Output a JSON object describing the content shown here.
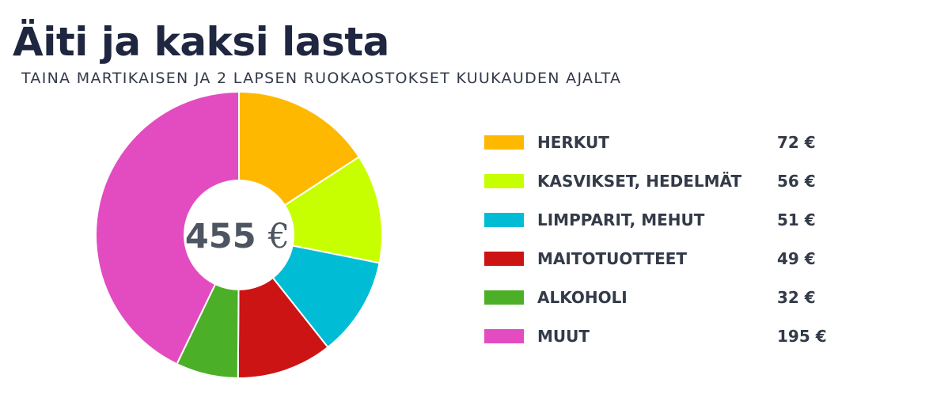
{
  "header": {
    "title": "Äiti ja kaksi lasta",
    "subtitle": "TAINA MARTIKAISEN JA 2 LAPSEN RUOKAOSTOKSET KUUKAUDEN AJALTA"
  },
  "chart_data": {
    "type": "pie",
    "donut": true,
    "title": "Äiti ja kaksi lasta",
    "subtitle": "TAINA MARTIKAISEN JA 2 LAPSEN RUOKAOSTOKSET KUUKAUDEN AJALTA",
    "center_value": "455",
    "center_unit": "€",
    "legend_position": "right",
    "categories": [
      "HERKUT",
      "KASVIKSET, HEDELMÄT",
      "LIMPPARIT, MEHUT",
      "MAITOTUOTTEET",
      "ALKOHOLI",
      "MUUT"
    ],
    "values": [
      72,
      56,
      51,
      49,
      32,
      195
    ],
    "value_labels": [
      "72 €",
      "56 €",
      "51 €",
      "49 €",
      "32 €",
      "195 €"
    ],
    "colors": [
      "#ffb800",
      "#c8ff00",
      "#00bcd4",
      "#cc1414",
      "#4caf28",
      "#e24cc0"
    ]
  }
}
